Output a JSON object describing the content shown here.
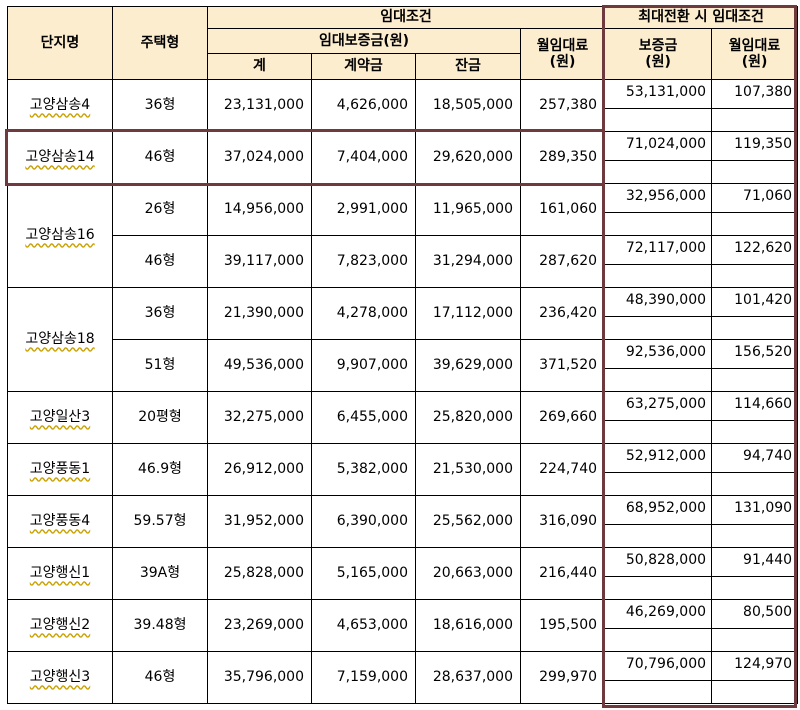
{
  "header": {
    "complex": "단지명",
    "type": "주택형",
    "rent_terms": "임대조건",
    "deposit": "임대보증금(원)",
    "total": "계",
    "down_payment": "계약금",
    "balance": "잔금",
    "monthly_rent": "월임대료\n(원)",
    "max_conversion": "최대전환 시 임대조건",
    "conv_deposit": "보증금\n(원)",
    "conv_monthly": "월임대료\n(원)"
  },
  "groups": [
    {
      "name": "고양삼송4",
      "rows": [
        {
          "type": "36형",
          "total": "23,131,000",
          "down": "4,626,000",
          "balance": "18,505,000",
          "monthly": "257,380",
          "conv_deposit": "53,131,000",
          "conv_monthly": "107,380"
        }
      ]
    },
    {
      "name": "고양삼송14",
      "rows": [
        {
          "type": "46형",
          "total": "37,024,000",
          "down": "7,404,000",
          "balance": "29,620,000",
          "monthly": "289,350",
          "conv_deposit": "71,024,000",
          "conv_monthly": "119,350"
        }
      ]
    },
    {
      "name": "고양삼송16",
      "rows": [
        {
          "type": "26형",
          "total": "14,956,000",
          "down": "2,991,000",
          "balance": "11,965,000",
          "monthly": "161,060",
          "conv_deposit": "32,956,000",
          "conv_monthly": "71,060"
        },
        {
          "type": "46형",
          "total": "39,117,000",
          "down": "7,823,000",
          "balance": "31,294,000",
          "monthly": "287,620",
          "conv_deposit": "72,117,000",
          "conv_monthly": "122,620"
        }
      ]
    },
    {
      "name": "고양삼송18",
      "rows": [
        {
          "type": "36형",
          "total": "21,390,000",
          "down": "4,278,000",
          "balance": "17,112,000",
          "monthly": "236,420",
          "conv_deposit": "48,390,000",
          "conv_monthly": "101,420"
        },
        {
          "type": "51형",
          "total": "49,536,000",
          "down": "9,907,000",
          "balance": "39,629,000",
          "monthly": "371,520",
          "conv_deposit": "92,536,000",
          "conv_monthly": "156,520"
        }
      ]
    },
    {
      "name": "고양일산3",
      "rows": [
        {
          "type": "20평형",
          "total": "32,275,000",
          "down": "6,455,000",
          "balance": "25,820,000",
          "monthly": "269,660",
          "conv_deposit": "63,275,000",
          "conv_monthly": "114,660"
        }
      ]
    },
    {
      "name": "고양풍동1",
      "rows": [
        {
          "type": "46.9형",
          "total": "26,912,000",
          "down": "5,382,000",
          "balance": "21,530,000",
          "monthly": "224,740",
          "conv_deposit": "52,912,000",
          "conv_monthly": "94,740"
        }
      ]
    },
    {
      "name": "고양풍동4",
      "rows": [
        {
          "type": "59.57형",
          "total": "31,952,000",
          "down": "6,390,000",
          "balance": "25,562,000",
          "monthly": "316,090",
          "conv_deposit": "68,952,000",
          "conv_monthly": "131,090"
        }
      ]
    },
    {
      "name": "고양행신1",
      "rows": [
        {
          "type": "39A형",
          "total": "25,828,000",
          "down": "5,165,000",
          "balance": "20,663,000",
          "monthly": "216,440",
          "conv_deposit": "50,828,000",
          "conv_monthly": "91,440"
        }
      ]
    },
    {
      "name": "고양행신2",
      "rows": [
        {
          "type": "39.48형",
          "total": "23,269,000",
          "down": "4,653,000",
          "balance": "18,616,000",
          "monthly": "195,500",
          "conv_deposit": "46,269,000",
          "conv_monthly": "80,500"
        }
      ]
    },
    {
      "name": "고양행신3",
      "rows": [
        {
          "type": "46형",
          "total": "35,796,000",
          "down": "7,159,000",
          "balance": "28,637,000",
          "monthly": "299,970",
          "conv_deposit": "70,796,000",
          "conv_monthly": "124,970"
        }
      ]
    }
  ],
  "colors": {
    "header_bg": "#fcedcf",
    "highlight_border": "#6e3a3e"
  }
}
